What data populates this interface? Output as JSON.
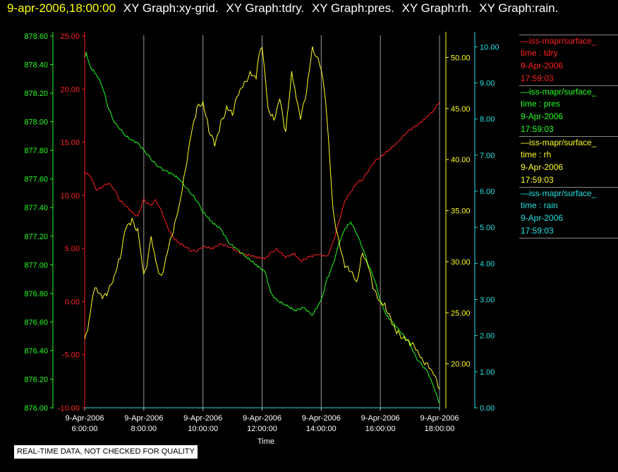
{
  "header": {
    "timestamp": "9-apr-2006,18:00:00",
    "graphs": [
      "XY Graph:xy-grid.",
      "XY Graph:tdry.",
      "XY Graph:pres.",
      "XY Graph:rh.",
      "XY Graph:rain."
    ]
  },
  "legend": [
    {
      "line": "—iss-mapr/surface_",
      "field": "time : tdry",
      "date": "9-Apr-2006",
      "time": "17:59:03",
      "color": "#ff2020"
    },
    {
      "line": "—iss-mapr/surface_",
      "field": "time : pres",
      "date": "9-Apr-2006",
      "time": "17:59:03",
      "color": "#20ff20"
    },
    {
      "line": "—iss-mapr/surface_",
      "field": "time : rh",
      "date": "9-Apr-2006",
      "time": "17:59:03",
      "color": "#ffff20"
    },
    {
      "line": "—iss-mapr/surface_",
      "field": "time : rain",
      "date": "9-Apr-2006",
      "time": "17:59:03",
      "color": "#20e0e0"
    }
  ],
  "note": "REAL-TIME DATA, NOT CHECKED FOR QUALITY",
  "chart_data": {
    "type": "line",
    "xlabel": "Time",
    "x_ticks": [
      {
        "hour": 6,
        "date": "9-Apr-2006",
        "time": "6:00:00"
      },
      {
        "hour": 8,
        "date": "9-Apr-2006",
        "time": "8:00:00"
      },
      {
        "hour": 10,
        "date": "9-Apr-2006",
        "time": "10:00:00"
      },
      {
        "hour": 12,
        "date": "9-Apr-2006",
        "time": "12:00:00"
      },
      {
        "hour": 14,
        "date": "9-Apr-2006",
        "time": "14:00:00"
      },
      {
        "hour": 16,
        "date": "9-Apr-2006",
        "time": "16:00:00"
      },
      {
        "hour": 18,
        "date": "9-Apr-2006",
        "time": "18:00:00"
      }
    ],
    "xlim": [
      6,
      18
    ],
    "grid": "vertical",
    "axes": {
      "pres": {
        "color": "#20ff20",
        "range": [
          876.0,
          878.6
        ],
        "ticks": [
          "876.00",
          "876.20",
          "876.40",
          "876.60",
          "876.80",
          "877.00",
          "877.20",
          "877.40",
          "877.60",
          "877.80",
          "878.00",
          "878.20",
          "878.40",
          "878.60"
        ]
      },
      "tdry": {
        "color": "#ff2020",
        "range": [
          -10,
          25
        ],
        "ticks": [
          "-10.00",
          "-5.00",
          "0.00",
          "5.00",
          "10.00",
          "15.00",
          "20.00",
          "25.00"
        ]
      },
      "rh": {
        "color": "#ffff20",
        "range": [
          15.7,
          52.1
        ],
        "ticks": [
          "20.00",
          "25.00",
          "30.00",
          "35.00",
          "40.00",
          "45.00",
          "50.00"
        ]
      },
      "rain": {
        "color": "#20e0e0",
        "range": [
          0,
          10.3
        ],
        "ticks": [
          "0.00",
          "1.00",
          "2.00",
          "3.00",
          "4.00",
          "5.00",
          "6.00",
          "7.00",
          "8.00",
          "9.00",
          "10.00"
        ]
      }
    },
    "series": [
      {
        "name": "tdry",
        "color": "#ff2020",
        "axis": "tdry",
        "points": [
          [
            6.0,
            12.2
          ],
          [
            6.2,
            11.8
          ],
          [
            6.4,
            10.5
          ],
          [
            6.6,
            10.8
          ],
          [
            6.8,
            11.2
          ],
          [
            7.0,
            10.6
          ],
          [
            7.2,
            9.5
          ],
          [
            7.4,
            9.0
          ],
          [
            7.6,
            8.4
          ],
          [
            7.8,
            8.0
          ],
          [
            8.0,
            9.6
          ],
          [
            8.2,
            9.0
          ],
          [
            8.4,
            9.5
          ],
          [
            8.6,
            8.5
          ],
          [
            8.8,
            7.0
          ],
          [
            9.0,
            6.0
          ],
          [
            9.2,
            5.5
          ],
          [
            9.4,
            5.2
          ],
          [
            9.6,
            4.8
          ],
          [
            9.8,
            4.8
          ],
          [
            10.0,
            5.2
          ],
          [
            10.3,
            5.0
          ],
          [
            10.6,
            5.4
          ],
          [
            10.9,
            5.2
          ],
          [
            11.2,
            4.6
          ],
          [
            11.5,
            4.4
          ],
          [
            11.8,
            4.2
          ],
          [
            12.1,
            4.0
          ],
          [
            12.3,
            4.6
          ],
          [
            12.5,
            4.9
          ],
          [
            12.8,
            4.2
          ],
          [
            13.1,
            4.5
          ],
          [
            13.3,
            3.8
          ],
          [
            13.6,
            4.2
          ],
          [
            13.9,
            4.5
          ],
          [
            14.2,
            4.2
          ],
          [
            14.4,
            5.5
          ],
          [
            14.6,
            7.5
          ],
          [
            14.8,
            9.5
          ],
          [
            15.0,
            10.3
          ],
          [
            15.2,
            11.2
          ],
          [
            15.4,
            11.5
          ],
          [
            15.6,
            12.4
          ],
          [
            15.8,
            13.2
          ],
          [
            16.0,
            13.6
          ],
          [
            16.3,
            14.3
          ],
          [
            16.6,
            15.0
          ],
          [
            16.9,
            16.0
          ],
          [
            17.2,
            16.5
          ],
          [
            17.5,
            17.2
          ],
          [
            17.8,
            18.0
          ],
          [
            18.0,
            18.8
          ]
        ]
      },
      {
        "name": "pres",
        "color": "#20ff20",
        "axis": "pres",
        "points": [
          [
            6.0,
            878.45
          ],
          [
            6.05,
            878.48
          ],
          [
            6.2,
            878.38
          ],
          [
            6.4,
            878.33
          ],
          [
            6.6,
            878.25
          ],
          [
            6.8,
            878.1
          ],
          [
            7.0,
            878.0
          ],
          [
            7.2,
            877.95
          ],
          [
            7.4,
            877.9
          ],
          [
            7.6,
            877.87
          ],
          [
            7.8,
            877.85
          ],
          [
            8.0,
            877.8
          ],
          [
            8.2,
            877.75
          ],
          [
            8.4,
            877.7
          ],
          [
            8.6,
            877.67
          ],
          [
            8.8,
            877.65
          ],
          [
            9.0,
            877.63
          ],
          [
            9.2,
            877.6
          ],
          [
            9.4,
            877.55
          ],
          [
            9.6,
            877.5
          ],
          [
            9.8,
            877.45
          ],
          [
            10.0,
            877.37
          ],
          [
            10.3,
            877.3
          ],
          [
            10.6,
            877.25
          ],
          [
            10.9,
            877.15
          ],
          [
            11.2,
            877.1
          ],
          [
            11.5,
            877.05
          ],
          [
            11.8,
            877.0
          ],
          [
            12.1,
            876.95
          ],
          [
            12.3,
            876.8
          ],
          [
            12.5,
            876.75
          ],
          [
            12.8,
            876.72
          ],
          [
            13.1,
            876.68
          ],
          [
            13.4,
            876.7
          ],
          [
            13.7,
            876.65
          ],
          [
            14.0,
            876.75
          ],
          [
            14.2,
            876.9
          ],
          [
            14.4,
            877.0
          ],
          [
            14.6,
            877.15
          ],
          [
            14.8,
            877.25
          ],
          [
            15.0,
            877.3
          ],
          [
            15.2,
            877.22
          ],
          [
            15.4,
            877.12
          ],
          [
            15.6,
            877.0
          ],
          [
            15.8,
            876.9
          ],
          [
            16.0,
            876.75
          ],
          [
            16.2,
            876.65
          ],
          [
            16.4,
            876.6
          ],
          [
            16.6,
            876.55
          ],
          [
            16.8,
            876.5
          ],
          [
            17.0,
            876.45
          ],
          [
            17.2,
            876.35
          ],
          [
            17.4,
            876.3
          ],
          [
            17.6,
            876.25
          ],
          [
            17.8,
            876.15
          ],
          [
            18.0,
            876.03
          ]
        ]
      },
      {
        "name": "rh",
        "color": "#ffff20",
        "axis": "rh",
        "points": [
          [
            6.0,
            22.5
          ],
          [
            6.1,
            23.0
          ],
          [
            6.25,
            26.5
          ],
          [
            6.4,
            27.5
          ],
          [
            6.6,
            26.5
          ],
          [
            6.8,
            27.0
          ],
          [
            7.0,
            28.5
          ],
          [
            7.2,
            30.5
          ],
          [
            7.4,
            33.5
          ],
          [
            7.6,
            34.0
          ],
          [
            7.8,
            33.0
          ],
          [
            7.9,
            31.0
          ],
          [
            8.0,
            29.0
          ],
          [
            8.1,
            29.5
          ],
          [
            8.25,
            32.5
          ],
          [
            8.4,
            30.0
          ],
          [
            8.6,
            28.5
          ],
          [
            8.8,
            31.0
          ],
          [
            9.0,
            33.0
          ],
          [
            9.2,
            35.5
          ],
          [
            9.4,
            39.0
          ],
          [
            9.6,
            42.5
          ],
          [
            9.8,
            45.0
          ],
          [
            10.0,
            45.5
          ],
          [
            10.2,
            43.0
          ],
          [
            10.4,
            41.5
          ],
          [
            10.6,
            43.5
          ],
          [
            10.8,
            45.0
          ],
          [
            11.0,
            44.5
          ],
          [
            11.2,
            46.5
          ],
          [
            11.4,
            47.5
          ],
          [
            11.6,
            48.5
          ],
          [
            11.8,
            48.0
          ],
          [
            11.9,
            50.5
          ],
          [
            12.0,
            51.0
          ],
          [
            12.1,
            48.0
          ],
          [
            12.2,
            45.0
          ],
          [
            12.4,
            44.0
          ],
          [
            12.6,
            46.0
          ],
          [
            12.8,
            42.5
          ],
          [
            13.0,
            48.5
          ],
          [
            13.1,
            47.0
          ],
          [
            13.3,
            44.0
          ],
          [
            13.5,
            46.5
          ],
          [
            13.7,
            51.0
          ],
          [
            13.85,
            50.0
          ],
          [
            14.0,
            49.0
          ],
          [
            14.1,
            47.0
          ],
          [
            14.2,
            44.0
          ],
          [
            14.4,
            35.0
          ],
          [
            14.6,
            32.0
          ],
          [
            14.8,
            29.5
          ],
          [
            15.0,
            29.0
          ],
          [
            15.2,
            28.0
          ],
          [
            15.4,
            31.0
          ],
          [
            15.6,
            29.5
          ],
          [
            15.8,
            27.0
          ],
          [
            16.0,
            26.0
          ],
          [
            16.2,
            25.5
          ],
          [
            16.4,
            24.0
          ],
          [
            16.6,
            23.0
          ],
          [
            16.8,
            22.5
          ],
          [
            17.0,
            22.0
          ],
          [
            17.2,
            21.5
          ],
          [
            17.4,
            20.5
          ],
          [
            17.6,
            20.0
          ],
          [
            17.8,
            19.0
          ],
          [
            18.0,
            17.5
          ]
        ]
      },
      {
        "name": "rain",
        "color": "#20e0e0",
        "axis": "rain",
        "points": [
          [
            6.0,
            0.0
          ],
          [
            18.0,
            0.0
          ]
        ]
      }
    ]
  }
}
